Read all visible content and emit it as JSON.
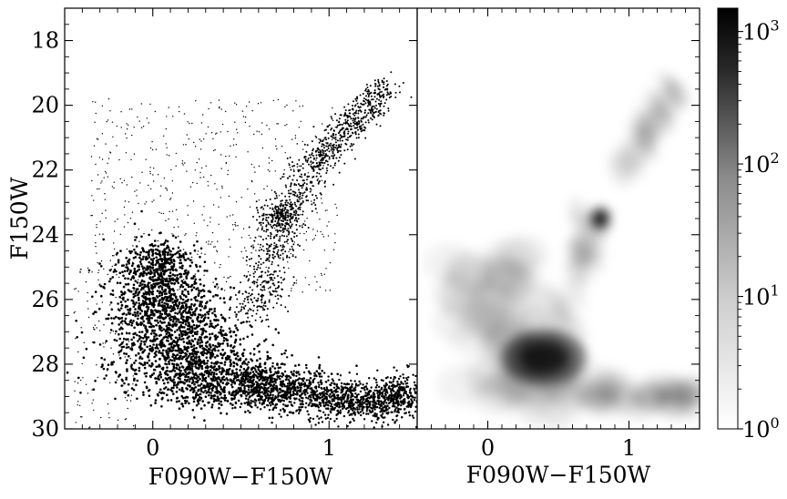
{
  "chart_data": [
    {
      "type": "scatter",
      "panel": "left",
      "xlabel": "F090W−F150W",
      "ylabel": "F150W",
      "xlim": [
        -0.5,
        1.5
      ],
      "ylim": [
        30,
        17
      ],
      "y_inverted": true,
      "xticks": [
        "0",
        "1"
      ],
      "yticks": [
        "18",
        "20",
        "22",
        "24",
        "26",
        "28",
        "30"
      ],
      "marker_color": "#000000",
      "features": {
        "main_sequence": [
          [
            0.02,
            24.5
          ],
          [
            0.05,
            26.0
          ],
          [
            0.15,
            27.3
          ],
          [
            0.3,
            28.3
          ],
          [
            0.45,
            28.9
          ]
        ],
        "lower_ms_extension": [
          [
            0.5,
            28.6
          ],
          [
            0.8,
            28.9
          ],
          [
            1.1,
            29.1
          ],
          [
            1.35,
            29.1
          ],
          [
            1.5,
            28.9
          ]
        ],
        "red_giant_branch": [
          [
            0.58,
            26.5
          ],
          [
            0.66,
            25.0
          ],
          [
            0.74,
            23.5
          ],
          [
            0.9,
            22.0
          ],
          [
            1.05,
            21.0
          ],
          [
            1.2,
            20.2
          ],
          [
            1.32,
            19.4
          ]
        ],
        "red_clump": [
          [
            0.72,
            23.4
          ]
        ]
      }
    },
    {
      "type": "heatmap",
      "panel": "right",
      "xlabel": "F090W−F150W",
      "xlim": [
        -0.5,
        1.5
      ],
      "ylim": [
        30,
        17
      ],
      "y_inverted": true,
      "xticks": [
        "0",
        "1"
      ],
      "colormap": "gray_r",
      "colorbar": {
        "scale": "log",
        "range": [
          1,
          1500
        ],
        "ticks": [
          "10^0",
          "10^1",
          "10^2",
          "10^3"
        ]
      },
      "density_peaks": [
        {
          "x": 0.4,
          "y": 27.8,
          "counts": 1500
        },
        {
          "x": 0.8,
          "y": 23.5,
          "counts": 1000
        }
      ]
    }
  ]
}
